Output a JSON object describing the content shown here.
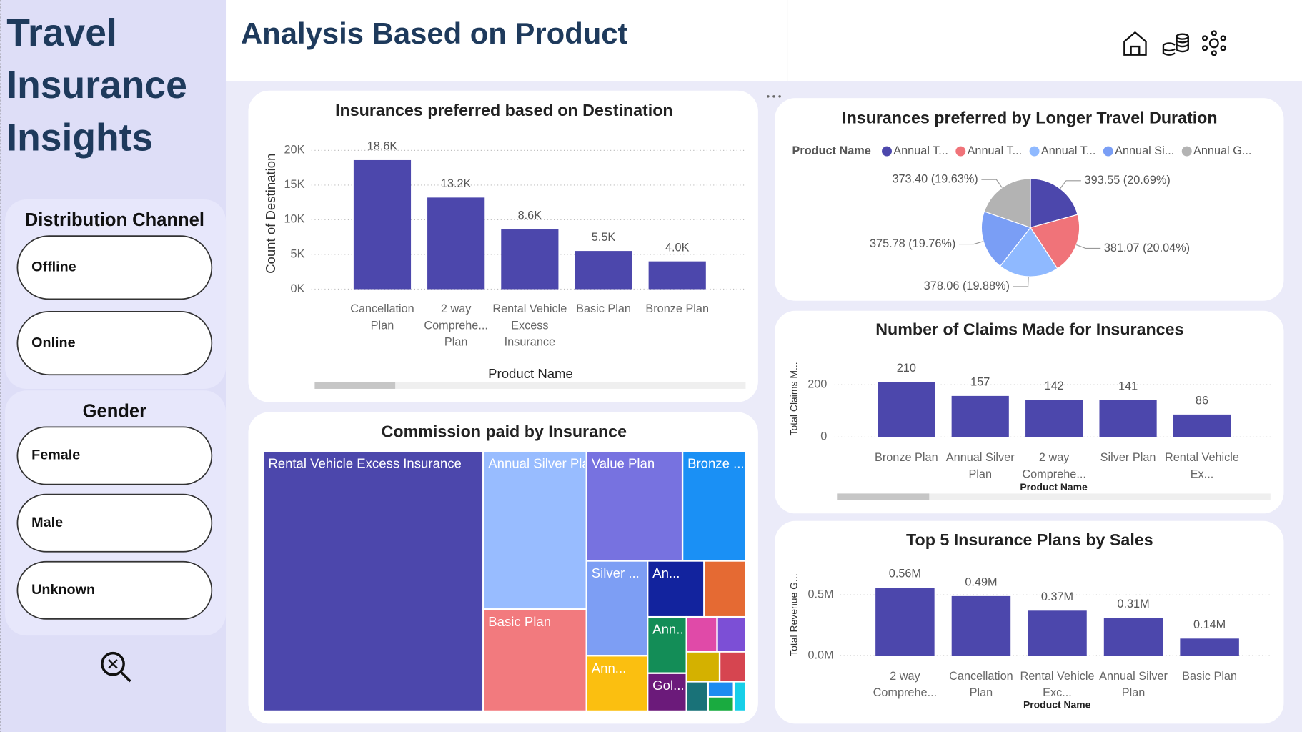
{
  "sidebar": {
    "title": "Travel Insurance Insights"
  },
  "header": {
    "title": "Analysis Based on Product"
  },
  "slicers": [
    {
      "title": "Distribution Channel",
      "options": [
        "Offline",
        "Online"
      ]
    },
    {
      "title": "Gender",
      "options": [
        "Female",
        "Male",
        "Unknown"
      ]
    }
  ],
  "chart_data": [
    {
      "type": "bar",
      "title": "Insurances preferred based on Destination",
      "x_label": "Product Name",
      "y_label": "Count of Destination",
      "categories": [
        "Cancellation Plan",
        "2 way Comprehe... Plan",
        "Rental Vehicle Excess Insurance",
        "Basic Plan",
        "Bronze Plan"
      ],
      "values": [
        18600,
        13200,
        8600,
        5500,
        4000
      ],
      "value_labels": [
        "18.6K",
        "13.2K",
        "8.6K",
        "5.5K",
        "4.0K"
      ],
      "color": "#4c47ac",
      "ylim": [
        0,
        20000
      ],
      "yticks": [
        {
          "value": 0,
          "label": "0K"
        },
        {
          "value": 5000,
          "label": "5K"
        },
        {
          "value": 10000,
          "label": "10K"
        },
        {
          "value": 15000,
          "label": "15K"
        },
        {
          "value": 20000,
          "label": "20K"
        }
      ],
      "grid": true
    },
    {
      "type": "pie",
      "title": "Insurances preferred by Longer Travel Duration",
      "legend_title": "Product Name",
      "categories": [
        "Annual T...",
        "Annual T...",
        "Annual T...",
        "Annual Si...",
        "Annual G..."
      ],
      "values": [
        393.55,
        381.07,
        378.06,
        375.78,
        373.4
      ],
      "value_labels": [
        "393.55 (20.69%)",
        "381.07 (20.04%)",
        "378.06 (19.88%)",
        "375.78 (19.76%)",
        "373.40 (19.63%)"
      ],
      "colors": [
        "#4c47ac",
        "#f07379",
        "#8fb9ff",
        "#7a9ef5",
        "#b3b3b3"
      ]
    },
    {
      "type": "bar",
      "title": "Number of Claims Made for Insurances",
      "x_label": "Product Name",
      "y_label": "Total Claims M...",
      "categories": [
        "Bronze Plan",
        "Annual Silver Plan",
        "2 way Comprehe...",
        "Silver Plan",
        "Rental Vehicle Ex..."
      ],
      "values": [
        210,
        157,
        142,
        141,
        86
      ],
      "color": "#4c47ac",
      "ylim": [
        0,
        200
      ],
      "yticks": [
        0,
        200
      ],
      "grid": true
    },
    {
      "type": "bar",
      "title": "Top 5 Insurance Plans by Sales",
      "x_label": "Product Name",
      "y_label": "Total Revenue G...",
      "categories": [
        "2 way Comprehe...",
        "Cancellation Plan",
        "Rental Vehicle Exc...",
        "Annual Silver Plan",
        "Basic Plan"
      ],
      "values": [
        560000,
        490000,
        370000,
        310000,
        140000
      ],
      "value_labels": [
        "0.56M",
        "0.49M",
        "0.37M",
        "0.31M",
        "0.14M"
      ],
      "color": "#4c47ac",
      "ylim": [
        0,
        500000
      ],
      "yticks": [
        {
          "value": 0,
          "label": "0.0M"
        },
        {
          "value": 500000,
          "label": "0.5M"
        }
      ],
      "grid": true
    },
    {
      "type": "treemap",
      "title": "Commission paid by Insurance",
      "categories": [
        "Rental Vehicle Excess Insurance",
        "Annual Silver Plan",
        "Basic Plan",
        "Value Plan",
        "Bronze ...",
        "Silver ...",
        "Ann...",
        "An...",
        null,
        "Ann...",
        "Gol...",
        null,
        null,
        null,
        null,
        null,
        null,
        null,
        null
      ],
      "values": [
        81000,
        23100,
        14900,
        14900,
        9800,
        8200,
        4800,
        4500,
        3300,
        3100,
        2100,
        1500,
        1400,
        1400,
        1100,
        900,
        550,
        530,
        500
      ],
      "colors": [
        "#4c47ac",
        "#98bcff",
        "#f27a7e",
        "#7772e0",
        "#1a90f5",
        "#7d9ef4",
        "#fbbf10",
        "#12239e",
        "#e56a33",
        "#138d57",
        "#6b1a7a",
        "#e04aa8",
        "#7c4fd6",
        "#d4b100",
        "#d64550",
        "#197278",
        "#1d8cf0",
        "#1aab40",
        "#17cfe8"
      ]
    }
  ]
}
